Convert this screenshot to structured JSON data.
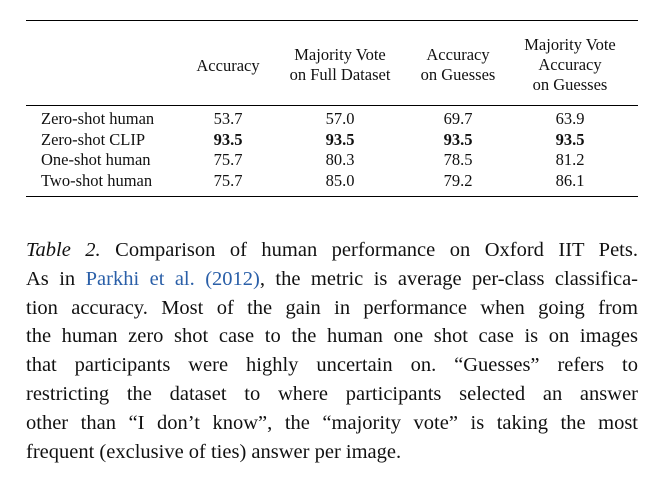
{
  "table": {
    "headers": [
      [
        "Accuracy"
      ],
      [
        "Majority Vote",
        "on Full Dataset"
      ],
      [
        "Accuracy",
        "on Guesses"
      ],
      [
        "Majority Vote",
        "Accuracy",
        "on Guesses"
      ]
    ],
    "rows": [
      {
        "label": "Zero-shot human",
        "values": [
          "53.7",
          "57.0",
          "69.7",
          "63.9"
        ]
      },
      {
        "label": "Zero-shot CLIP",
        "values": [
          "93.5",
          "93.5",
          "93.5",
          "93.5"
        ]
      },
      {
        "label": "One-shot human",
        "values": [
          "75.7",
          "80.3",
          "78.5",
          "81.2"
        ]
      },
      {
        "label": "Two-shot human",
        "values": [
          "75.7",
          "85.0",
          "79.2",
          "86.1"
        ]
      }
    ]
  },
  "caption": {
    "label": "Table 2.",
    "citation": "Parkhi et al. (2012)",
    "lines": [
      " Comparison of human performance on Oxford IIT Pets.",
      "As in ",
      ", the metric is average per-class classifica-",
      "tion accuracy. Most of the gain in performance when going from",
      "the human zero shot case to the human one shot case is on images",
      "that participants were highly uncertain on. “Guesses” refers to",
      "restricting the dataset to where participants selected an answer",
      "other than “I don’t know”, the “majority vote” is taking the most",
      "frequent (exclusive of ties) answer per image."
    ]
  }
}
